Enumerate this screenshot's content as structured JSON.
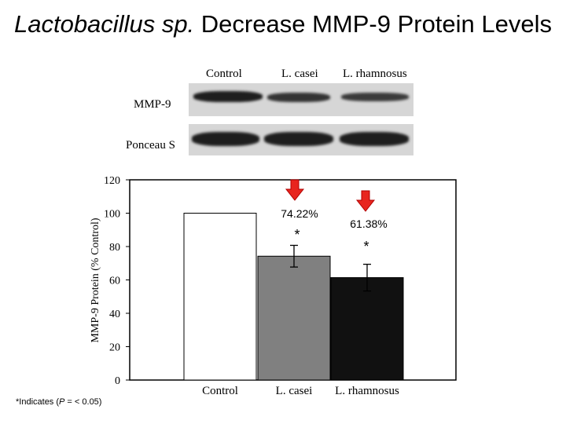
{
  "title_part1": "Lactobacillus sp.",
  "title_part2": " Decrease MMP-9 Protein Levels",
  "blot": {
    "lane_labels": [
      "Control",
      "L. casei",
      "L. rhamnosus"
    ],
    "row1_label": "MMP-9",
    "row2_label": "Ponceau S"
  },
  "note_prefix": "*Indicates (",
  "note_p": "P",
  "note_suffix": " = < 0.05)",
  "colors": {
    "control": "#ffffff",
    "casei": "#808080",
    "rhamnosus": "#111111",
    "arrow": "#e8251e"
  },
  "chart_data": {
    "type": "bar",
    "categories": [
      "Control",
      "L. casei",
      "L. rhamnosus"
    ],
    "values": [
      100,
      74.22,
      61.38
    ],
    "errors": [
      0,
      6.5,
      8
    ],
    "value_labels": [
      "",
      "74.22%",
      "61.38%"
    ],
    "significance": [
      "",
      "*",
      "*"
    ],
    "ylabel": "MMP-9 Protein (% Control)",
    "ylim": [
      0,
      120
    ],
    "yticks": [
      0,
      20,
      40,
      60,
      80,
      100,
      120
    ],
    "grid": false,
    "legend": "none"
  }
}
